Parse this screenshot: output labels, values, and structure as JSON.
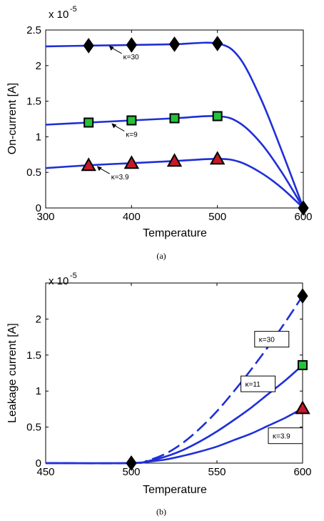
{
  "chart_data": [
    {
      "type": "line",
      "caption": "(a)",
      "xlabel": "Temperature",
      "ylabel": "On-current [A]",
      "multiplier": "x 10",
      "multiplier_exp": "-5",
      "xlim": [
        300,
        600
      ],
      "ylim": [
        0,
        2.5
      ],
      "xticks": [
        "300",
        "400",
        "500",
        "600"
      ],
      "yticks": [
        "0",
        "0.5",
        "1",
        "1.5",
        "2",
        "2.5"
      ],
      "grid": false,
      "line_color": "#1f2fd8",
      "series": [
        {
          "name": "κ=30",
          "marker": "diamond",
          "marker_color": "#000000",
          "x": [
            300,
            350,
            400,
            450,
            500,
            525,
            550,
            575,
            600
          ],
          "y": [
            2.27,
            2.28,
            2.29,
            2.3,
            2.31,
            2.12,
            1.55,
            0.8,
            0.0
          ],
          "markers_x": [
            350,
            400,
            450,
            500,
            600
          ],
          "markers_y": [
            2.28,
            2.29,
            2.3,
            2.31,
            0.0
          ]
        },
        {
          "name": "κ=9",
          "marker": "square",
          "marker_color": "#22c43a",
          "x": [
            300,
            350,
            400,
            450,
            500,
            525,
            550,
            575,
            600
          ],
          "y": [
            1.17,
            1.2,
            1.23,
            1.26,
            1.29,
            1.2,
            0.92,
            0.5,
            0.0
          ],
          "markers_x": [
            350,
            400,
            450,
            500
          ],
          "markers_y": [
            1.2,
            1.23,
            1.26,
            1.29
          ]
        },
        {
          "name": "κ=3.9",
          "marker": "triangle",
          "marker_color": "#c41a2a",
          "x": [
            300,
            350,
            400,
            450,
            500,
            525,
            550,
            575,
            600
          ],
          "y": [
            0.56,
            0.6,
            0.63,
            0.66,
            0.69,
            0.65,
            0.5,
            0.28,
            0.0
          ],
          "markers_x": [
            350,
            400,
            450,
            500
          ],
          "markers_y": [
            0.6,
            0.63,
            0.66,
            0.69
          ]
        }
      ],
      "annotations": [
        {
          "text": "κ=30",
          "at": [
            372,
            2.29
          ]
        },
        {
          "text": "κ=9",
          "at": [
            375,
            1.2
          ]
        },
        {
          "text": "κ=3.9",
          "at": [
            358,
            0.6
          ]
        }
      ]
    },
    {
      "type": "line",
      "caption": "(b)",
      "xlabel": "Temperature",
      "ylabel": "Leakage current [A]",
      "multiplier": "x 10",
      "multiplier_exp": "-5",
      "xlim": [
        450,
        600
      ],
      "ylim": [
        0,
        2.5
      ],
      "xticks": [
        "450",
        "500",
        "550",
        "600"
      ],
      "yticks": [
        "0",
        "0.5",
        "1",
        "1.5",
        "2"
      ],
      "grid": false,
      "line_color": "#1f2fd8",
      "series": [
        {
          "name": "κ=30",
          "marker": "diamond",
          "marker_color": "#000000",
          "dashed": true,
          "x": [
            450,
            500,
            510,
            520,
            530,
            540,
            550,
            560,
            570,
            580,
            590,
            600
          ],
          "y": [
            0.0,
            0.0,
            0.04,
            0.13,
            0.28,
            0.48,
            0.72,
            1.0,
            1.3,
            1.62,
            1.96,
            2.32
          ],
          "markers_x": [
            500,
            600
          ],
          "markers_y": [
            0.0,
            2.32
          ]
        },
        {
          "name": "κ=11",
          "marker": "square",
          "marker_color": "#22c43a",
          "x": [
            450,
            500,
            510,
            520,
            530,
            540,
            550,
            560,
            570,
            580,
            590,
            600
          ],
          "y": [
            0.0,
            0.0,
            0.03,
            0.09,
            0.18,
            0.3,
            0.44,
            0.6,
            0.77,
            0.96,
            1.15,
            1.36
          ],
          "markers_x": [
            600
          ],
          "markers_y": [
            1.36
          ]
        },
        {
          "name": "κ=3.9",
          "marker": "triangle",
          "marker_color": "#c41a2a",
          "x": [
            450,
            500,
            510,
            520,
            530,
            540,
            550,
            560,
            570,
            580,
            590,
            600
          ],
          "y": [
            0.0,
            0.0,
            0.02,
            0.05,
            0.1,
            0.16,
            0.23,
            0.32,
            0.41,
            0.52,
            0.63,
            0.76
          ],
          "markers_x": [
            600
          ],
          "markers_y": [
            0.76
          ]
        }
      ],
      "annotations": [
        {
          "text": "κ=30",
          "box": true,
          "at": [
            582,
            1.72
          ]
        },
        {
          "text": "κ=11",
          "box": true,
          "at": [
            574,
            1.1
          ]
        },
        {
          "text": "κ=3.9",
          "box": true,
          "at": [
            590,
            0.38
          ]
        }
      ]
    }
  ]
}
